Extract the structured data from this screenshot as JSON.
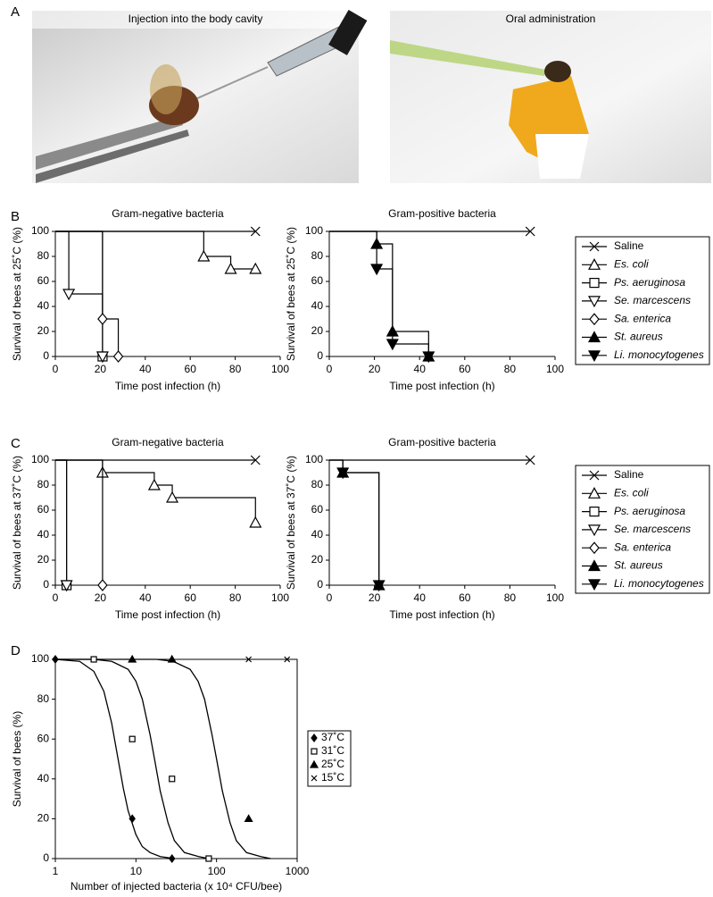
{
  "panel_labels": [
    "A",
    "B",
    "C",
    "D"
  ],
  "panel_a": {
    "captions": [
      "Injection into the body cavity",
      "Oral administration"
    ]
  },
  "chart_data": [
    {
      "type": "step",
      "title": "Gram-negative bacteria",
      "xlabel": "Time post infection (h)",
      "ylabel": "Survival of bees at 25˚C (%)",
      "xlim": [
        0,
        100
      ],
      "xticks": [
        0,
        20,
        40,
        60,
        80,
        100
      ],
      "ylim": [
        0,
        100
      ],
      "yticks": [
        0,
        20,
        40,
        60,
        80,
        100
      ],
      "series": [
        {
          "marker": "x",
          "color": "#000000",
          "x": [
            0,
            89
          ],
          "values": [
            100,
            100
          ]
        },
        {
          "name": "Es. coli",
          "marker": "triangle-open",
          "color": "#000000",
          "x": [
            0,
            66,
            78,
            89
          ],
          "values": [
            100,
            80,
            70,
            70
          ]
        },
        {
          "name": "Ps. aeruginosa",
          "marker": "square-open",
          "color": "#000000",
          "x": [
            0,
            21
          ],
          "values": [
            100,
            0
          ]
        },
        {
          "name": "Se. marcescens",
          "marker": "triangle-down-open",
          "color": "#000000",
          "x": [
            0,
            6,
            21
          ],
          "values": [
            100,
            50,
            0
          ]
        },
        {
          "name": "Sa. enterica",
          "marker": "diamond-open",
          "color": "#000000",
          "x": [
            0,
            21,
            28
          ],
          "values": [
            100,
            30,
            0
          ]
        }
      ]
    },
    {
      "type": "step",
      "title": "Gram-positive bacteria",
      "xlabel": "Time post infection (h)",
      "ylabel": "Survival of bees at 25˚C (%)",
      "xlim": [
        0,
        100
      ],
      "xticks": [
        0,
        20,
        40,
        60,
        80,
        100
      ],
      "ylim": [
        0,
        100
      ],
      "yticks": [
        0,
        20,
        40,
        60,
        80,
        100
      ],
      "series": [
        {
          "name": "Saline",
          "marker": "x",
          "color": "#000000",
          "x": [
            0,
            89
          ],
          "values": [
            100,
            100
          ]
        },
        {
          "name": "St. aureus",
          "marker": "triangle",
          "color": "#000000",
          "x": [
            0,
            21,
            28,
            44
          ],
          "values": [
            100,
            90,
            20,
            0
          ]
        },
        {
          "name": "Li. monocytogenes",
          "marker": "triangle-down",
          "color": "#000000",
          "x": [
            0,
            21,
            28,
            44
          ],
          "values": [
            100,
            70,
            10,
            0
          ]
        }
      ]
    },
    {
      "type": "step",
      "title": "Gram-negative bacteria",
      "xlabel": "Time post infection (h)",
      "ylabel": "Survival of bees at 37˚C (%)",
      "xlim": [
        0,
        100
      ],
      "xticks": [
        0,
        20,
        40,
        60,
        80,
        100
      ],
      "ylim": [
        0,
        100
      ],
      "yticks": [
        0,
        20,
        40,
        60,
        80,
        100
      ],
      "series": [
        {
          "marker": "x",
          "color": "#000000",
          "x": [
            0,
            89
          ],
          "values": [
            100,
            100
          ]
        },
        {
          "name": "Es. coli",
          "marker": "triangle-open",
          "color": "#000000",
          "x": [
            0,
            21,
            44,
            52,
            89
          ],
          "values": [
            100,
            90,
            80,
            70,
            50
          ]
        },
        {
          "name": "Ps. aeruginosa",
          "marker": "square-open",
          "color": "#000000",
          "x": [
            0,
            5
          ],
          "values": [
            100,
            0
          ]
        },
        {
          "name": "Se. marcescens",
          "marker": "triangle-down-open",
          "color": "#000000",
          "x": [
            0,
            5
          ],
          "values": [
            100,
            0
          ]
        },
        {
          "name": "Sa. enterica",
          "marker": "diamond-open",
          "color": "#000000",
          "x": [
            0,
            21
          ],
          "values": [
            100,
            0
          ]
        }
      ]
    },
    {
      "type": "step",
      "title": "Gram-positive bacteria",
      "xlabel": "Time post infection (h)",
      "ylabel": "Survival of bees at 37˚C (%)",
      "xlim": [
        0,
        100
      ],
      "xticks": [
        0,
        20,
        40,
        60,
        80,
        100
      ],
      "ylim": [
        0,
        100
      ],
      "yticks": [
        0,
        20,
        40,
        60,
        80,
        100
      ],
      "series": [
        {
          "name": "Saline",
          "marker": "x",
          "color": "#000000",
          "x": [
            0,
            89
          ],
          "values": [
            100,
            100
          ]
        },
        {
          "name": "St. aureus",
          "marker": "triangle",
          "color": "#000000",
          "x": [
            0,
            6,
            22
          ],
          "values": [
            100,
            90,
            0
          ]
        },
        {
          "name": "Li. monocytogenes",
          "marker": "triangle-down",
          "color": "#000000",
          "x": [
            0,
            6,
            22
          ],
          "values": [
            100,
            90,
            0
          ]
        }
      ]
    },
    {
      "type": "scatter",
      "xlabel": "Number of injected bacteria (x 10⁴ CFU/bee)",
      "ylabel": "Survival of bees (%)",
      "log_x": true,
      "frame": true,
      "xlim": [
        1,
        1000
      ],
      "xticks": [
        1,
        10,
        100,
        1000
      ],
      "ylim": [
        0,
        100
      ],
      "yticks": [
        0,
        20,
        40,
        60,
        80,
        100
      ],
      "series": [
        {
          "name": "37˚C",
          "marker": "diamond",
          "color": "#000000",
          "x": [
            1,
            9,
            28
          ],
          "values": [
            100,
            20,
            0
          ]
        },
        {
          "name": "31˚C",
          "marker": "square-open",
          "color": "#000000",
          "x": [
            3,
            9,
            28,
            80
          ],
          "values": [
            100,
            60,
            40,
            0
          ]
        },
        {
          "name": "25˚C",
          "marker": "triangle",
          "color": "#000000",
          "x": [
            9,
            28,
            250
          ],
          "values": [
            100,
            100,
            20
          ]
        },
        {
          "name": "15˚C",
          "marker": "x",
          "color": "#000000",
          "x": [
            250,
            750
          ],
          "values": [
            100,
            100
          ]
        }
      ],
      "curves": [
        {
          "color": "#000000",
          "x": [
            1,
            2,
            3,
            4,
            5,
            6,
            7,
            8,
            10,
            12,
            15,
            20,
            30
          ],
          "values": [
            100,
            99,
            94,
            84,
            68,
            50,
            35,
            24,
            12,
            6,
            3,
            1,
            0
          ]
        },
        {
          "color": "#000000",
          "x": [
            1,
            3,
            5,
            8,
            10,
            12,
            15,
            17,
            20,
            25,
            30,
            40,
            60,
            80
          ],
          "values": [
            100,
            100,
            99,
            95,
            89,
            80,
            62,
            50,
            34,
            18,
            9,
            3,
            1,
            0
          ]
        },
        {
          "color": "#000000",
          "x": [
            1,
            18,
            29,
            47,
            59,
            71,
            88,
            100,
            118,
            147,
            176,
            235,
            353,
            470
          ],
          "values": [
            100,
            100,
            99,
            95,
            89,
            80,
            62,
            50,
            34,
            18,
            9,
            3,
            1,
            0
          ]
        }
      ]
    }
  ]
}
